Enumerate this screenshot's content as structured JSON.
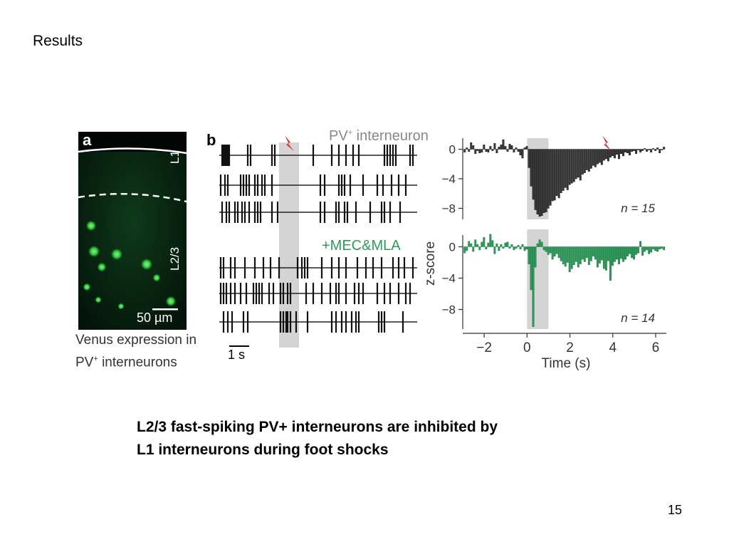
{
  "slide": {
    "heading": "Results",
    "caption_line1": "L2/3 fast-spiking PV+ interneurons are inhibited by",
    "caption_line2": "L1 interneurons during foot shocks",
    "page_number": "15"
  },
  "panel_a": {
    "letter": "a",
    "layer_l1": "L1",
    "layer_l23": "L2/3",
    "scale_bar": "50 µm",
    "caption_line1": "Venus expression in",
    "caption_line2_prefix": "PV",
    "caption_line2_sup": "+",
    "caption_line2_suffix": " interneurons"
  },
  "panel_b": {
    "letter": "b",
    "title_prefix": "PV",
    "title_sup": "+",
    "title_suffix": " interneuron",
    "drug_label": "+MEC&MLA",
    "time_bar": "1 s",
    "shock_icon": "lightning-bolt-icon"
  },
  "chart_data": [
    {
      "type": "bar",
      "title": "",
      "xlabel": "Time (s)",
      "ylabel": "z-score",
      "annotation": "n = 15",
      "color": "#3a3a3a",
      "xlim": [
        -3,
        6.5
      ],
      "ylim": [
        -9.5,
        1.5
      ],
      "xticks": [
        -2,
        0,
        2,
        4,
        6
      ],
      "yticks": [
        0,
        -4,
        -8
      ],
      "shaded_interval": [
        0,
        1
      ],
      "x": [
        -2.9,
        -2.8,
        -2.7,
        -2.6,
        -2.5,
        -2.4,
        -2.3,
        -2.2,
        -2.1,
        -2.0,
        -1.9,
        -1.8,
        -1.7,
        -1.6,
        -1.5,
        -1.4,
        -1.3,
        -1.2,
        -1.1,
        -1.0,
        -0.9,
        -0.8,
        -0.7,
        -0.6,
        -0.5,
        -0.4,
        -0.3,
        -0.2,
        -0.1,
        0.0,
        0.1,
        0.2,
        0.3,
        0.4,
        0.5,
        0.6,
        0.7,
        0.8,
        0.9,
        1.0,
        1.1,
        1.2,
        1.3,
        1.4,
        1.5,
        1.6,
        1.7,
        1.8,
        1.9,
        2.0,
        2.1,
        2.2,
        2.3,
        2.4,
        2.5,
        2.6,
        2.7,
        2.8,
        2.9,
        3.0,
        3.1,
        3.2,
        3.3,
        3.4,
        3.5,
        3.6,
        3.7,
        3.8,
        3.9,
        4.0,
        4.1,
        4.2,
        4.3,
        4.4,
        4.5,
        4.6,
        4.7,
        4.8,
        4.9,
        5.0,
        5.1,
        5.2,
        5.3,
        5.4,
        5.5,
        5.6,
        5.7,
        5.8,
        5.9,
        6.0,
        6.1,
        6.2,
        6.3,
        6.4
      ],
      "values": [
        -0.4,
        0.2,
        -0.3,
        0.9,
        0.5,
        -0.6,
        -0.2,
        -0.5,
        -0.4,
        0.6,
        -0.3,
        -0.4,
        0.4,
        -0.2,
        0.8,
        -0.5,
        0.3,
        0.6,
        1.3,
        0.4,
        -0.3,
        0.7,
        0.5,
        -0.4,
        0.2,
        -0.3,
        -0.8,
        -1.2,
        0.2,
        0.4,
        -2.5,
        -5.0,
        -6.8,
        -8.2,
        -8.8,
        -9.1,
        -9.0,
        -8.6,
        -8.5,
        -8.0,
        -7.6,
        -7.0,
        -6.9,
        -6.3,
        -6.6,
        -5.9,
        -5.6,
        -5.2,
        -5.5,
        -4.8,
        -4.6,
        -4.4,
        -4.0,
        -3.8,
        -4.2,
        -3.4,
        -3.2,
        -2.8,
        -3.0,
        -2.6,
        -2.2,
        -2.4,
        -2.0,
        -1.8,
        -2.1,
        -1.5,
        -1.3,
        -1.6,
        -1.1,
        -0.9,
        -1.2,
        -0.7,
        -1.3,
        -0.6,
        -0.9,
        -0.4,
        -0.5,
        -0.8,
        -0.3,
        -0.2,
        -0.6,
        -0.1,
        -0.4,
        -0.2,
        0.1,
        -0.3,
        -0.1,
        -0.4,
        0.1,
        -0.2,
        0.2,
        -0.5,
        -0.1,
        0.3
      ]
    },
    {
      "type": "bar",
      "title": "",
      "xlabel": "Time (s)",
      "ylabel": "z-score",
      "annotation": "n = 14",
      "color": "#2e9a5a",
      "xlim": [
        -3,
        6.5
      ],
      "ylim": [
        -10.5,
        1.5
      ],
      "xticks": [
        -2,
        0,
        2,
        4,
        6
      ],
      "yticks": [
        0,
        -4,
        -8
      ],
      "shaded_interval": [
        0,
        1
      ],
      "x": [
        -2.9,
        -2.8,
        -2.7,
        -2.6,
        -2.5,
        -2.4,
        -2.3,
        -2.2,
        -2.1,
        -2.0,
        -1.9,
        -1.8,
        -1.7,
        -1.6,
        -1.5,
        -1.4,
        -1.3,
        -1.2,
        -1.1,
        -1.0,
        -0.9,
        -0.8,
        -0.7,
        -0.6,
        -0.5,
        -0.4,
        -0.3,
        -0.2,
        -0.1,
        0.0,
        0.1,
        0.2,
        0.3,
        0.4,
        0.5,
        0.6,
        0.7,
        0.8,
        0.9,
        1.0,
        1.1,
        1.2,
        1.3,
        1.4,
        1.5,
        1.6,
        1.7,
        1.8,
        1.9,
        2.0,
        2.1,
        2.2,
        2.3,
        2.4,
        2.5,
        2.6,
        2.7,
        2.8,
        2.9,
        3.0,
        3.1,
        3.2,
        3.3,
        3.4,
        3.5,
        3.6,
        3.7,
        3.8,
        3.9,
        4.0,
        4.1,
        4.2,
        4.3,
        4.4,
        4.5,
        4.6,
        4.7,
        4.8,
        4.9,
        5.0,
        5.1,
        5.2,
        5.3,
        5.4,
        5.5,
        5.6,
        5.7,
        5.8,
        5.9,
        6.0,
        6.1,
        6.2,
        6.3,
        6.4
      ],
      "values": [
        -0.8,
        -0.5,
        0.7,
        0.4,
        -0.6,
        0.9,
        0.3,
        -0.4,
        0.6,
        1.2,
        -0.3,
        0.5,
        1.6,
        0.8,
        -0.9,
        0.4,
        -0.5,
        0.3,
        -0.2,
        0.5,
        0.6,
        -0.2,
        0.3,
        -0.4,
        -0.2,
        0.2,
        -0.3,
        0.3,
        -0.5,
        -0.3,
        -2.2,
        -5.5,
        -10.2,
        -2.6,
        0.4,
        0.9,
        0.6,
        -0.4,
        -0.6,
        -1.0,
        -0.8,
        -1.6,
        -1.2,
        -0.9,
        -1.4,
        -1.8,
        -2.2,
        -2.5,
        -2.0,
        -3.2,
        -2.8,
        -2.3,
        -1.9,
        -2.6,
        -2.2,
        -1.6,
        -1.9,
        -1.4,
        -2.3,
        -1.8,
        -1.2,
        -1.6,
        -2.6,
        -2.1,
        -1.7,
        -2.8,
        -3.0,
        -1.8,
        -4.3,
        -2.4,
        -1.9,
        -1.6,
        -2.2,
        -1.5,
        -1.9,
        -1.6,
        -1.2,
        -0.9,
        -1.4,
        -1.6,
        -1.0,
        -0.8,
        0.7,
        -1.1,
        -0.6,
        -0.4,
        -0.9,
        -0.7,
        -0.3,
        -0.5,
        -0.6,
        -0.3,
        -0.2,
        -0.4
      ]
    }
  ]
}
